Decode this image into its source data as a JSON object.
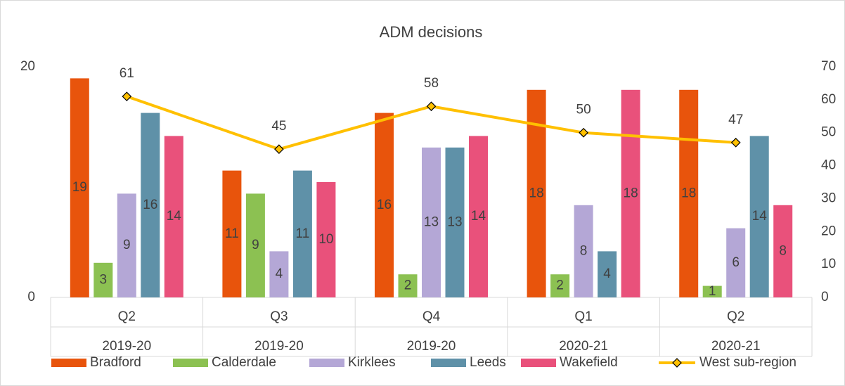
{
  "chart_data": {
    "type": "bar_line",
    "title": "ADM decisions",
    "categories": [
      "Q2",
      "Q3",
      "Q4",
      "Q1",
      "Q2"
    ],
    "category_groups": [
      "2019-20",
      "2019-20",
      "2019-20",
      "2020-21",
      "2020-21"
    ],
    "series": [
      {
        "name": "Bradford",
        "color": "#e8540c",
        "values": [
          19,
          11,
          16,
          18,
          18
        ]
      },
      {
        "name": "Calderdale",
        "color": "#8cc152",
        "values": [
          3,
          9,
          2,
          2,
          1
        ]
      },
      {
        "name": "Kirklees",
        "color": "#b4a7d6",
        "values": [
          9,
          4,
          13,
          8,
          6
        ]
      },
      {
        "name": "Leeds",
        "color": "#5f91a8",
        "values": [
          16,
          11,
          13,
          4,
          14
        ]
      },
      {
        "name": "Wakefield",
        "color": "#e9517b",
        "values": [
          14,
          10,
          14,
          18,
          8
        ]
      },
      {
        "name": "West sub-region",
        "color": "#ffc000",
        "type": "line",
        "axis": "y2",
        "values": [
          61,
          45,
          58,
          50,
          47
        ]
      }
    ],
    "ylim": [
      0,
      20
    ],
    "yticks": [
      0,
      20
    ],
    "y2lim": [
      0,
      70
    ],
    "y2ticks": [
      0,
      10,
      20,
      30,
      40,
      50,
      60,
      70
    ],
    "grid": false,
    "legend": "bottom"
  }
}
